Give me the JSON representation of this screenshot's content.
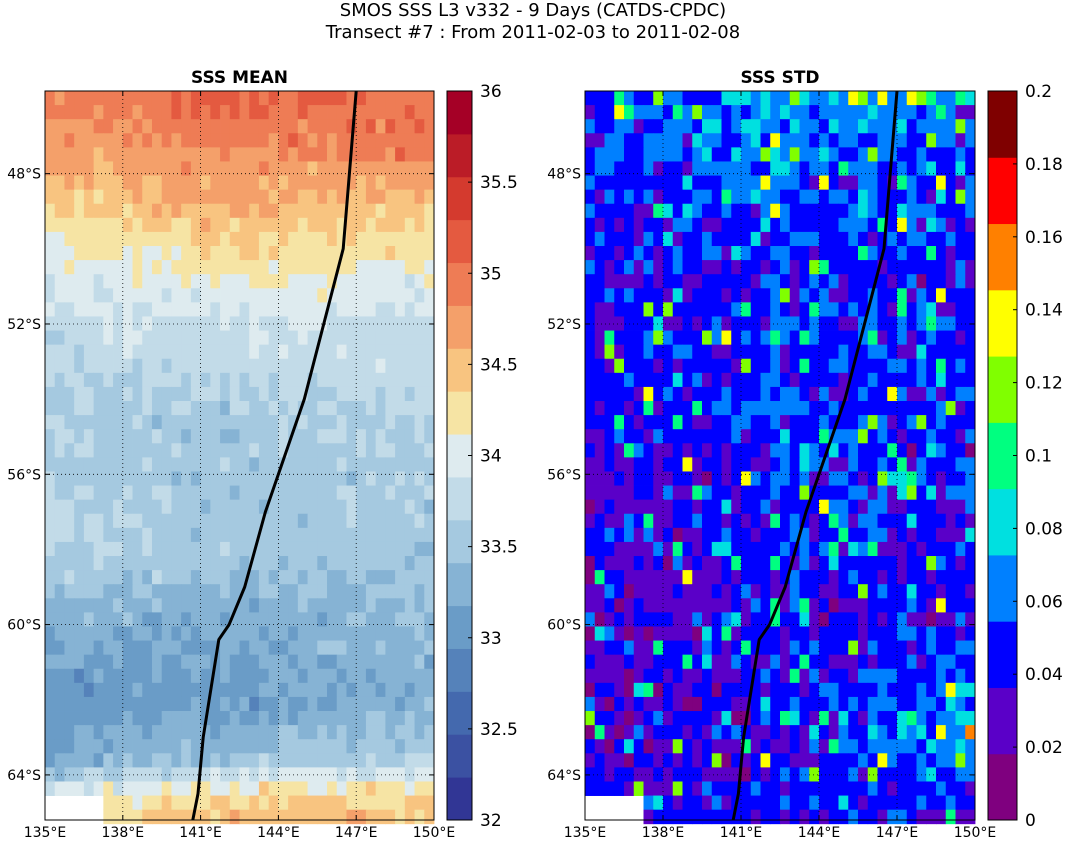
{
  "header": {
    "title_line1": "SMOS SSS L3 v332 - 9 Days (CATDS-CPDC)",
    "title_line2": "Transect #7 : From 2011-02-03 to 2011-02-08"
  },
  "chart_data": [
    {
      "type": "heatmap",
      "title": "SSS MEAN",
      "x_ticks": [
        {
          "value": 135,
          "label": "135°E"
        },
        {
          "value": 138,
          "label": "138°E"
        },
        {
          "value": 141,
          "label": "141°E"
        },
        {
          "value": 144,
          "label": "144°E"
        },
        {
          "value": 147,
          "label": "147°E"
        },
        {
          "value": 150,
          "label": "150°E"
        }
      ],
      "y_ticks": [
        {
          "value": -48,
          "label": "48°S"
        },
        {
          "value": -52,
          "label": "52°S"
        },
        {
          "value": -56,
          "label": "56°S"
        },
        {
          "value": -60,
          "label": "60°S"
        },
        {
          "value": -64,
          "label": "64°S"
        }
      ],
      "xlim": [
        135,
        150
      ],
      "ylim": [
        -65.2,
        -45.8
      ],
      "grid": true,
      "colorbar": {
        "range": [
          32,
          36
        ],
        "ticks": [
          {
            "value": 32,
            "label": "32"
          },
          {
            "value": 32.5,
            "label": "32.5"
          },
          {
            "value": 33,
            "label": "33"
          },
          {
            "value": 33.5,
            "label": "33.5"
          },
          {
            "value": 34,
            "label": "34"
          },
          {
            "value": 34.5,
            "label": "34.5"
          },
          {
            "value": 35,
            "label": "35"
          },
          {
            "value": 35.5,
            "label": "35.5"
          },
          {
            "value": 36,
            "label": "36"
          }
        ],
        "colors": [
          "#313695",
          "#3b51a2",
          "#4469ae",
          "#5582ba",
          "#6a9cc7",
          "#86b3d4",
          "#a5c9e0",
          "#c2dbe8",
          "#deebef",
          "#f6e4a4",
          "#f8c480",
          "#f4a06a",
          "#ee7c55",
          "#e45a40",
          "#d43a2e",
          "#bb1c27",
          "#a50026"
        ]
      },
      "transect": {
        "lon": [
          147.0,
          146.5,
          145.0,
          143.5,
          142.7,
          142.1,
          141.7,
          141.1,
          140.9,
          140.7
        ],
        "lat": [
          -45.8,
          -50.0,
          -54.0,
          -57.0,
          -59.0,
          -60.0,
          -60.4,
          -63.0,
          -64.5,
          -65.2
        ]
      },
      "field_summary": {
        "lon": [
          135,
          142.5,
          150
        ],
        "lat": [
          -46,
          -47.5,
          -49,
          -50.5,
          -52,
          -54,
          -56,
          -58,
          -60,
          -62,
          -63.5,
          -64.5,
          -65
        ],
        "values": [
          [
            34.9,
            35.1,
            35.0
          ],
          [
            34.7,
            34.8,
            34.9
          ],
          [
            34.3,
            34.6,
            34.4
          ],
          [
            34.0,
            34.2,
            34.1
          ],
          [
            33.8,
            33.9,
            33.8
          ],
          [
            33.6,
            33.6,
            33.7
          ],
          [
            33.6,
            33.5,
            33.6
          ],
          [
            33.7,
            33.5,
            33.5
          ],
          [
            33.3,
            33.2,
            33.4
          ],
          [
            33.0,
            33.1,
            33.3
          ],
          [
            33.2,
            33.4,
            33.6
          ],
          [
            34.0,
            34.3,
            34.3
          ],
          [
            34.2,
            34.5,
            34.4
          ]
        ]
      }
    },
    {
      "type": "heatmap",
      "title": "SSS STD",
      "x_ticks": [
        {
          "value": 135,
          "label": "135°E"
        },
        {
          "value": 138,
          "label": "138°E"
        },
        {
          "value": 141,
          "label": "141°E"
        },
        {
          "value": 144,
          "label": "144°E"
        },
        {
          "value": 147,
          "label": "147°E"
        },
        {
          "value": 150,
          "label": "150°E"
        }
      ],
      "y_ticks": [
        {
          "value": -48,
          "label": "48°S"
        },
        {
          "value": -52,
          "label": "52°S"
        },
        {
          "value": -56,
          "label": "56°S"
        },
        {
          "value": -60,
          "label": "60°S"
        },
        {
          "value": -64,
          "label": "64°S"
        }
      ],
      "xlim": [
        135,
        150
      ],
      "ylim": [
        -65.2,
        -45.8
      ],
      "grid": true,
      "colorbar": {
        "range": [
          0,
          0.2
        ],
        "ticks": [
          {
            "value": 0,
            "label": "0"
          },
          {
            "value": 0.02,
            "label": "0.02"
          },
          {
            "value": 0.04,
            "label": "0.04"
          },
          {
            "value": 0.06,
            "label": "0.06"
          },
          {
            "value": 0.08,
            "label": "0.08"
          },
          {
            "value": 0.1,
            "label": "0.1"
          },
          {
            "value": 0.12,
            "label": "0.12"
          },
          {
            "value": 0.14,
            "label": "0.14"
          },
          {
            "value": 0.16,
            "label": "0.16"
          },
          {
            "value": 0.18,
            "label": "0.18"
          },
          {
            "value": 0.2,
            "label": "0.2"
          }
        ],
        "colors": [
          "#7f007f",
          "#5a00c8",
          "#0000ff",
          "#0080ff",
          "#00e0e0",
          "#00ff80",
          "#80ff00",
          "#ffff00",
          "#ff8000",
          "#ff0000",
          "#7f0000"
        ]
      },
      "transect": {
        "lon": [
          147.0,
          146.5,
          145.0,
          143.5,
          142.7,
          142.1,
          141.7,
          141.1,
          140.9,
          140.7
        ],
        "lat": [
          -45.8,
          -50.0,
          -54.0,
          -57.0,
          -59.0,
          -60.0,
          -60.4,
          -63.0,
          -64.5,
          -65.2
        ]
      },
      "field_summary": {
        "lon": [
          135,
          142.5,
          150
        ],
        "lat": [
          -46,
          -50,
          -55,
          -60,
          -63,
          -65
        ],
        "values": [
          [
            0.05,
            0.07,
            0.06
          ],
          [
            0.04,
            0.05,
            0.04
          ],
          [
            0.04,
            0.05,
            0.05
          ],
          [
            0.03,
            0.04,
            0.04
          ],
          [
            0.03,
            0.04,
            0.08
          ],
          [
            0.05,
            0.04,
            0.04
          ]
        ]
      }
    }
  ]
}
